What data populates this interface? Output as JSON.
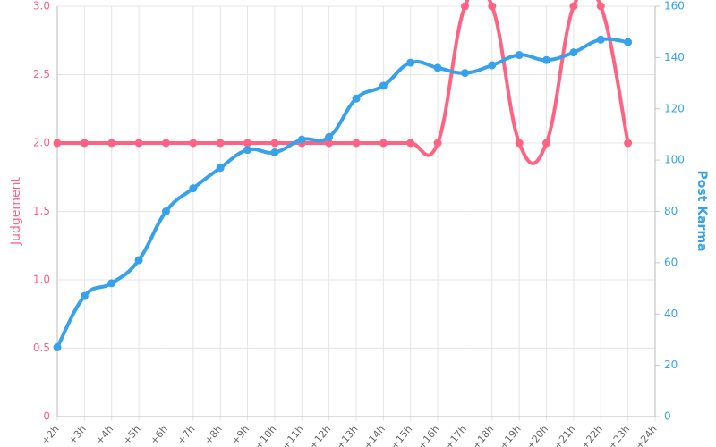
{
  "chart_data": {
    "type": "line",
    "categories": [
      "+2h",
      "+3h",
      "+4h",
      "+5h",
      "+6h",
      "+7h",
      "+8h",
      "+9h",
      "+10h",
      "+11h",
      "+12h",
      "+13h",
      "+14h",
      "+15h",
      "+16h",
      "+17h",
      "+18h",
      "+19h",
      "+20h",
      "+21h",
      "+22h",
      "+23h",
      "+24h"
    ],
    "series": [
      {
        "name": "Judgement",
        "color": "#ff6384",
        "axis": "y",
        "values": [
          2,
          2,
          2,
          2,
          2,
          2,
          2,
          2,
          2,
          2,
          2,
          2,
          2,
          2,
          2,
          3,
          3,
          2,
          2,
          3,
          3,
          2,
          null
        ]
      },
      {
        "name": "Post Karma",
        "color": "#36a2eb",
        "axis": "y2",
        "values": [
          27,
          47,
          52,
          61,
          80,
          89,
          97,
          104,
          103,
          108,
          109,
          124,
          129,
          138,
          136,
          134,
          137,
          141,
          139,
          142,
          147,
          146,
          null
        ]
      }
    ],
    "ylabel": "Judgement",
    "y2label": "Post Karma",
    "ylim": [
      0,
      3
    ],
    "yticks": [
      0,
      0.5,
      {
        "value": 1,
        "label": "1.0"
      },
      1.5,
      {
        "value": 2,
        "label": "2.0"
      },
      2.5,
      {
        "value": 3,
        "label": "3.0"
      }
    ],
    "y2lim": [
      0,
      160
    ],
    "y2ticks": [
      0,
      20,
      40,
      60,
      80,
      100,
      120,
      140,
      160
    ],
    "grid": true
  }
}
